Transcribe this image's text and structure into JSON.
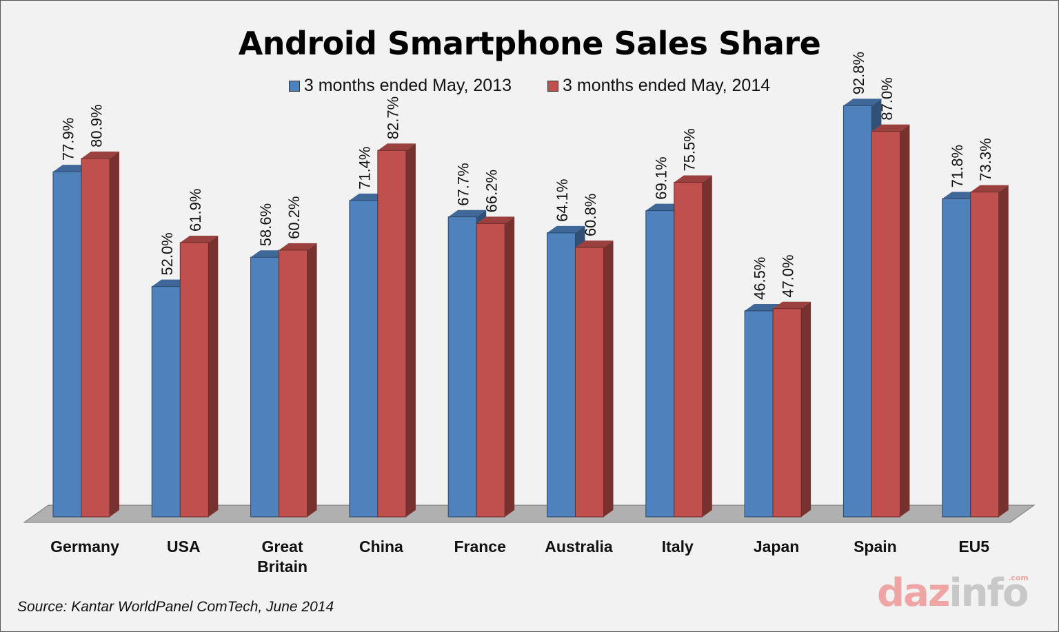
{
  "chart_data": {
    "type": "bar",
    "title": "Android Smartphone Sales Share",
    "categories": [
      "Germany",
      "USA",
      "Great Britain",
      "China",
      "France",
      "Australia",
      "Italy",
      "Japan",
      "Spain",
      "EU5"
    ],
    "category_lines": [
      [
        "Germany"
      ],
      [
        "USA"
      ],
      [
        "Great",
        "Britain"
      ],
      [
        "China"
      ],
      [
        "France"
      ],
      [
        "Australia"
      ],
      [
        "Italy"
      ],
      [
        "Japan"
      ],
      [
        "Spain"
      ],
      [
        "EU5"
      ]
    ],
    "series": [
      {
        "name": "3 months ended May, 2013",
        "color": "#4f81bd",
        "values": [
          77.9,
          52.0,
          58.6,
          71.4,
          67.7,
          64.1,
          69.1,
          46.5,
          92.8,
          71.8
        ],
        "labels": [
          "77.9%",
          "52.0%",
          "58.6%",
          "71.4%",
          "67.7%",
          "64.1%",
          "69.1%",
          "46.5%",
          "92.8%",
          "71.8%"
        ]
      },
      {
        "name": "3 months ended May, 2014",
        "color": "#c0504d",
        "values": [
          80.9,
          61.9,
          60.2,
          82.7,
          66.2,
          60.8,
          75.5,
          47.0,
          87.0,
          73.3
        ],
        "labels": [
          "80.9%",
          "61.9%",
          "60.2%",
          "82.7%",
          "66.2%",
          "60.8%",
          "75.5%",
          "47.0%",
          "87.0%",
          "73.3%"
        ]
      }
    ],
    "ylim": [
      0,
      100
    ],
    "xlabel": "",
    "ylabel": "",
    "grid": false,
    "legend_position": "top-center",
    "style": "3d"
  },
  "source": "Source: Kantar WorldPanel ComTech, June 2014",
  "watermark": {
    "part1": "daz",
    "part2": "info",
    "suffix": ".com"
  },
  "colors": {
    "background": "#f2f2f2",
    "floor": "#b0b0b0"
  }
}
